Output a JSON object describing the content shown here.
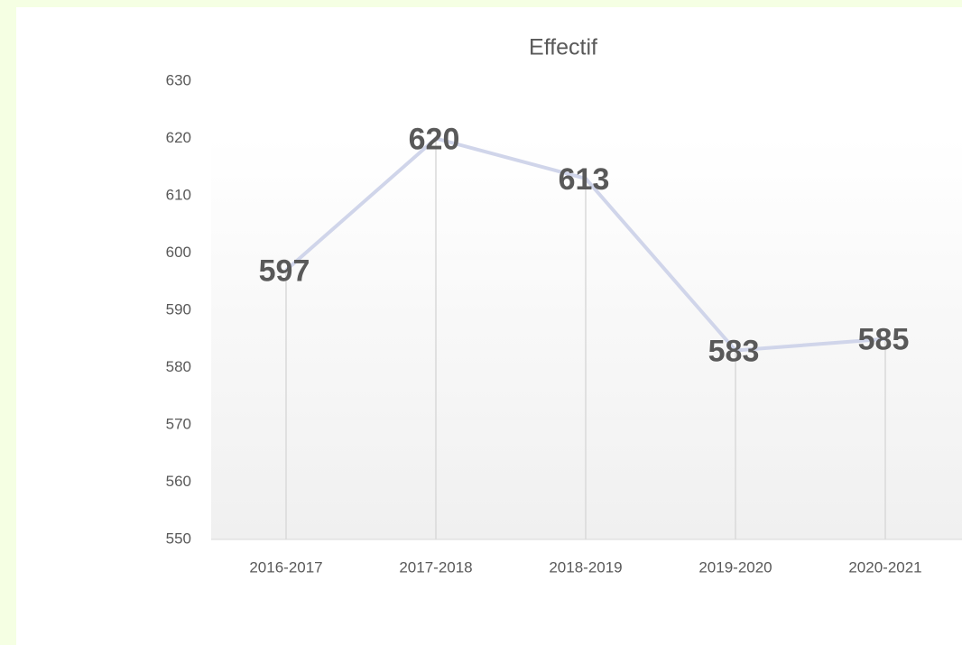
{
  "chart_data": {
    "type": "line",
    "title": "Effectif",
    "categories": [
      "2016-2017",
      "2017-2018",
      "2018-2019",
      "2019-2020",
      "2020-2021"
    ],
    "values": [
      597,
      620,
      613,
      583,
      585
    ],
    "color": "#d0d5ea",
    "ylim": [
      550,
      630
    ],
    "yticks": [
      550,
      560,
      570,
      580,
      590,
      600,
      610,
      620,
      630
    ],
    "drop_lines": true,
    "data_labels": true
  }
}
